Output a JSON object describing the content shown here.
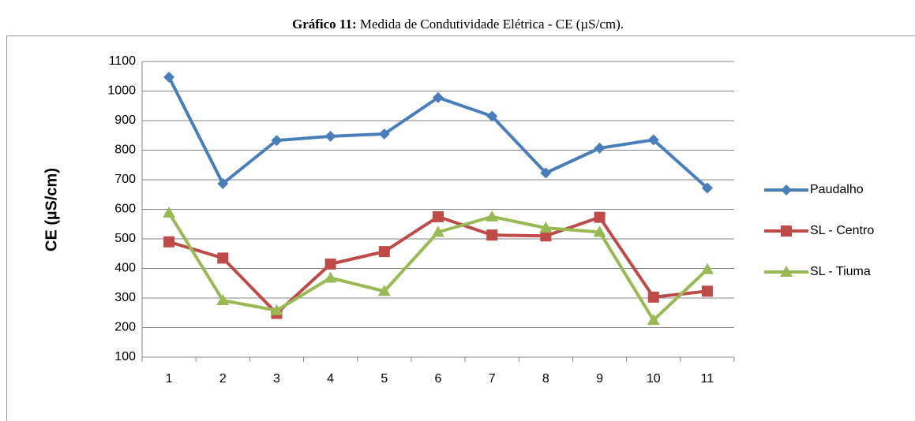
{
  "chart_data": {
    "type": "line",
    "title_label": "Gráfico 11:",
    "title": "Medida de Condutividade Elétrica - CE (µS/cm).",
    "y_label": "CE (µS/cm)",
    "categories": [
      "1",
      "2",
      "3",
      "4",
      "5",
      "6",
      "7",
      "8",
      "9",
      "10",
      "11"
    ],
    "series": [
      {
        "name": "Paudalho",
        "color": "#4a7ebb",
        "marker": "diamond",
        "values": [
          1047,
          687,
          833,
          847,
          855,
          978,
          915,
          723,
          807,
          835,
          672
        ]
      },
      {
        "name": "SL - Centro",
        "color": "#be4b48",
        "marker": "square",
        "values": [
          490,
          435,
          248,
          415,
          457,
          575,
          513,
          510,
          573,
          303,
          323
        ]
      },
      {
        "name": "SL - Tiuma",
        "color": "#98b954",
        "marker": "triangle",
        "values": [
          588,
          292,
          258,
          368,
          323,
          523,
          575,
          537,
          523,
          225,
          397
        ]
      }
    ],
    "ylim": [
      100,
      1100
    ],
    "yticks": [
      100,
      200,
      300,
      400,
      500,
      600,
      700,
      800,
      900,
      1000,
      1100
    ],
    "grid": true,
    "legend": "right"
  }
}
